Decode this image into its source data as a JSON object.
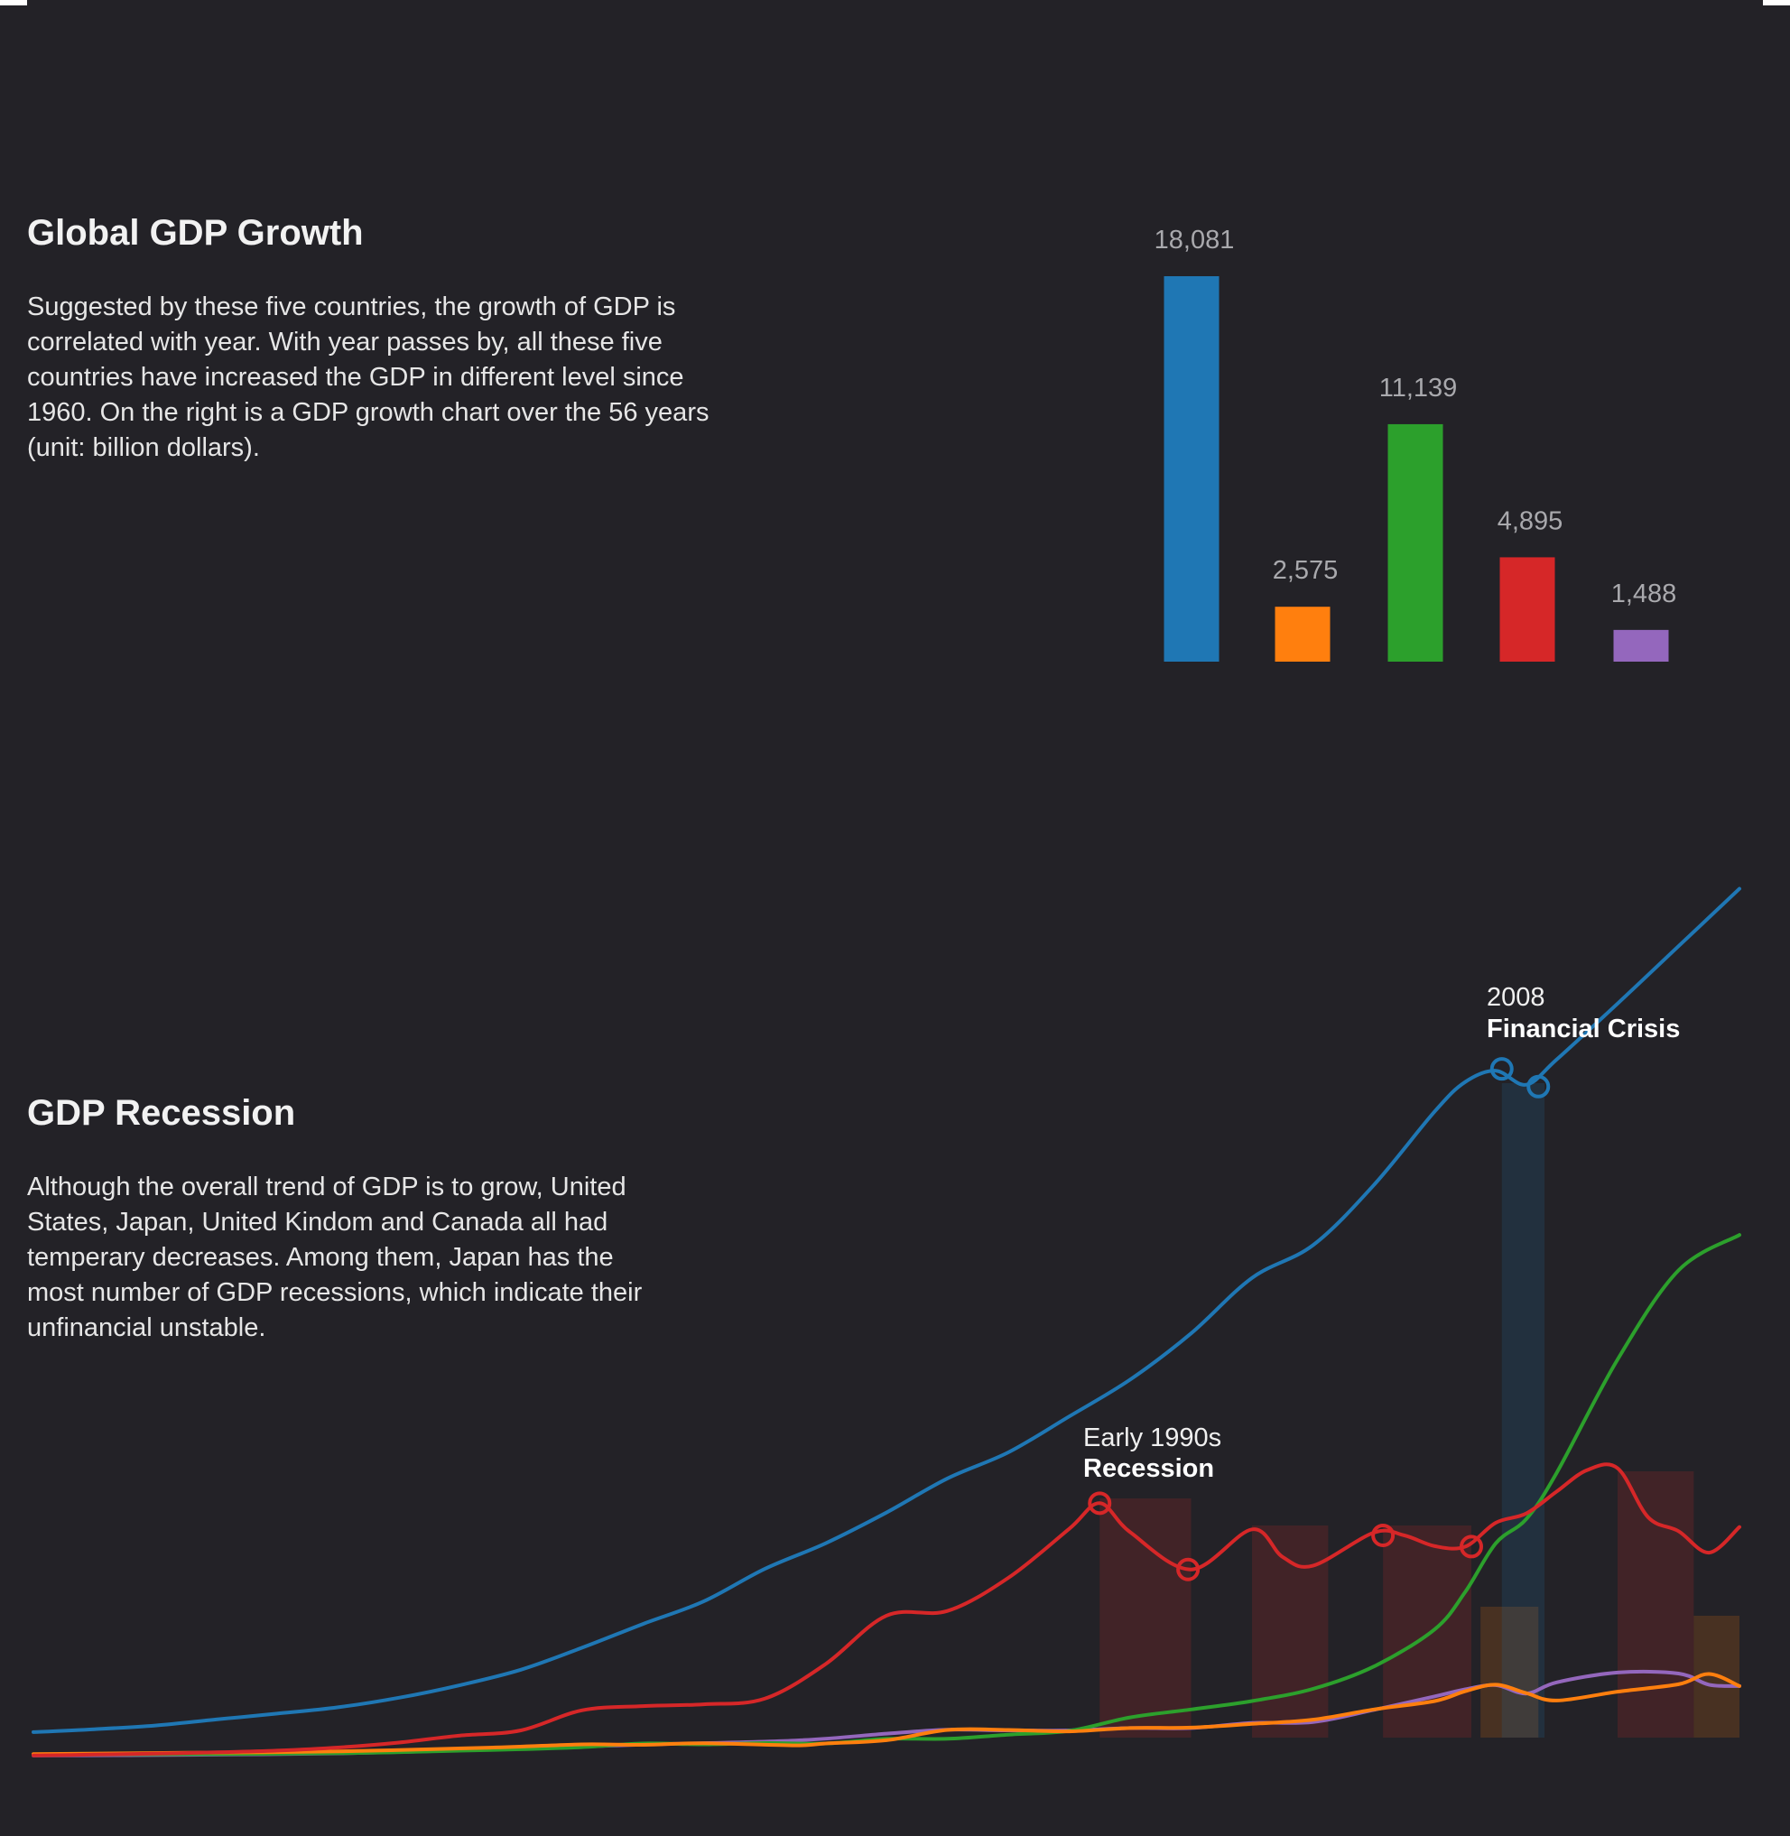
{
  "sections": {
    "growth": {
      "title": "Global GDP Growth",
      "body": "Suggested by these five countries, the growth of GDP is correlated with year. With year passes by, all these five countries have increased the GDP in different level since 1960. On the right is a GDP growth chart over the 56 years (unit: billion dollars)."
    },
    "recession": {
      "title": "GDP Recession",
      "body": "Although the overall trend of GDP is to grow, United States, Japan, United Kindom and Canada all had temperary decreases. Among them,  Japan has the most number of GDP recessions, which indicate their unfinancial unstable."
    }
  },
  "chart_data": [
    {
      "type": "bar",
      "title": "",
      "values": [
        18081,
        2575,
        11139,
        4895,
        1488
      ],
      "labels": [
        "18,081",
        "2,575",
        "11,139",
        "4,895",
        "1,488"
      ],
      "colors": [
        "#1f77b4",
        "#ff7f0e",
        "#2ca02c",
        "#d62728",
        "#9467bd"
      ],
      "ylim": [
        0,
        18081
      ]
    },
    {
      "type": "line",
      "title": "",
      "x_range": [
        1960,
        2016
      ],
      "ylim": [
        0,
        19000
      ],
      "series": [
        {
          "color": "#1f77b4",
          "points": [
            [
              1960,
              543
            ],
            [
              1962,
              605
            ],
            [
              1964,
              685
            ],
            [
              1966,
              815
            ],
            [
              1968,
              940
            ],
            [
              1970,
              1075
            ],
            [
              1972,
              1280
            ],
            [
              1974,
              1550
            ],
            [
              1976,
              1880
            ],
            [
              1978,
              2350
            ],
            [
              1980,
              2860
            ],
            [
              1982,
              3345
            ],
            [
              1984,
              4040
            ],
            [
              1986,
              4590
            ],
            [
              1988,
              5250
            ],
            [
              1990,
              5980
            ],
            [
              1992,
              6540
            ],
            [
              1994,
              7310
            ],
            [
              1996,
              8100
            ],
            [
              1998,
              9090
            ],
            [
              2000,
              10280
            ],
            [
              2002,
              10980
            ],
            [
              2004,
              12270
            ],
            [
              2006,
              13850
            ],
            [
              2007,
              14480
            ],
            [
              2008,
              14720
            ],
            [
              2009,
              14420
            ],
            [
              2010,
              14960
            ],
            [
              2012,
              16160
            ],
            [
              2014,
              17390
            ],
            [
              2016,
              18620
            ]
          ]
        },
        {
          "color": "#ff7f0e",
          "points": [
            [
              1960,
              72
            ],
            [
              1965,
              100
            ],
            [
              1970,
              130
            ],
            [
              1975,
              210
            ],
            [
              1978,
              280
            ],
            [
              1980,
              270
            ],
            [
              1982,
              305
            ],
            [
              1985,
              260
            ],
            [
              1986,
              300
            ],
            [
              1988,
              370
            ],
            [
              1990,
              590
            ],
            [
              1992,
              590
            ],
            [
              1994,
              560
            ],
            [
              1996,
              630
            ],
            [
              1998,
              640
            ],
            [
              2000,
              720
            ],
            [
              2002,
              810
            ],
            [
              2004,
              1030
            ],
            [
              2006,
              1210
            ],
            [
              2007,
              1420
            ],
            [
              2008,
              1560
            ],
            [
              2009,
              1380
            ],
            [
              2010,
              1220
            ],
            [
              2012,
              1410
            ],
            [
              2014,
              1570
            ],
            [
              2015,
              1790
            ],
            [
              2016,
              1530
            ]
          ]
        },
        {
          "color": "#2ca02c",
          "points": [
            [
              1960,
              60
            ],
            [
              1965,
              70
            ],
            [
              1970,
              90
            ],
            [
              1975,
              160
            ],
            [
              1978,
              220
            ],
            [
              1980,
              300
            ],
            [
              1982,
              280
            ],
            [
              1984,
              310
            ],
            [
              1986,
              300
            ],
            [
              1988,
              400
            ],
            [
              1990,
              400
            ],
            [
              1992,
              490
            ],
            [
              1994,
              570
            ],
            [
              1996,
              860
            ],
            [
              1998,
              1030
            ],
            [
              2000,
              1210
            ],
            [
              2002,
              1470
            ],
            [
              2004,
              1950
            ],
            [
              2006,
              2750
            ],
            [
              2007,
              3550
            ],
            [
              2008,
              4590
            ],
            [
              2009,
              5110
            ],
            [
              2010,
              6100
            ],
            [
              2012,
              8530
            ],
            [
              2014,
              10440
            ],
            [
              2016,
              11200
            ]
          ]
        },
        {
          "color": "#d62728",
          "points": [
            [
              1960,
              44
            ],
            [
              1962,
              61
            ],
            [
              1964,
              82
            ],
            [
              1966,
              110
            ],
            [
              1968,
              147
            ],
            [
              1970,
              213
            ],
            [
              1972,
              320
            ],
            [
              1974,
              470
            ],
            [
              1976,
              580
            ],
            [
              1978,
              1010
            ],
            [
              1980,
              1100
            ],
            [
              1982,
              1140
            ],
            [
              1984,
              1260
            ],
            [
              1986,
              2000
            ],
            [
              1988,
              3040
            ],
            [
              1990,
              3140
            ],
            [
              1992,
              3850
            ],
            [
              1994,
              4900
            ],
            [
              1995,
              5450
            ],
            [
              1996,
              4830
            ],
            [
              1998,
              4030
            ],
            [
              2000,
              4890
            ],
            [
              2001,
              4300
            ],
            [
              2002,
              4110
            ],
            [
              2004,
              4820
            ],
            [
              2005,
              4760
            ],
            [
              2006,
              4530
            ],
            [
              2007,
              4520
            ],
            [
              2008,
              5030
            ],
            [
              2009,
              5230
            ],
            [
              2010,
              5700
            ],
            [
              2011,
              6160
            ],
            [
              2012,
              6200
            ],
            [
              2013,
              5150
            ],
            [
              2014,
              4850
            ],
            [
              2015,
              4390
            ],
            [
              2016,
              4940
            ]
          ]
        },
        {
          "color": "#9467bd",
          "points": [
            [
              1960,
              40
            ],
            [
              1965,
              57
            ],
            [
              1970,
              88
            ],
            [
              1975,
              173
            ],
            [
              1980,
              274
            ],
            [
              1985,
              364
            ],
            [
              1988,
              510
            ],
            [
              1990,
              594
            ],
            [
              1992,
              580
            ],
            [
              1994,
              580
            ],
            [
              1996,
              630
            ],
            [
              1998,
              630
            ],
            [
              2000,
              740
            ],
            [
              2002,
              760
            ],
            [
              2004,
              1020
            ],
            [
              2006,
              1310
            ],
            [
              2007,
              1460
            ],
            [
              2008,
              1550
            ],
            [
              2009,
              1370
            ],
            [
              2010,
              1610
            ],
            [
              2012,
              1820
            ],
            [
              2014,
              1800
            ],
            [
              2015,
              1560
            ],
            [
              2016,
              1530
            ]
          ]
        }
      ],
      "shaded_periods": [
        {
          "start": 1995,
          "end": 1998,
          "color": "#d62728"
        },
        {
          "start": 2000,
          "end": 2002.5,
          "color": "#d62728"
        },
        {
          "start": 2004.3,
          "end": 2007.2,
          "color": "#d62728"
        },
        {
          "start": 2007.5,
          "end": 2009.4,
          "color": "#ff7f0e"
        },
        {
          "start": 2008.2,
          "end": 2009.6,
          "color": "#1f77b4"
        },
        {
          "start": 2012,
          "end": 2014.5,
          "color": "#d62728"
        },
        {
          "start": 2014.5,
          "end": 2016,
          "color": "#ff7f0e"
        }
      ],
      "markers": [
        {
          "x": 1995,
          "y": 5450,
          "color": "#d62728"
        },
        {
          "x": 1997.9,
          "y": 4030,
          "color": "#d62728"
        },
        {
          "x": 2004.3,
          "y": 4760,
          "color": "#d62728"
        },
        {
          "x": 2007.2,
          "y": 4520,
          "color": "#d62728"
        },
        {
          "x": 2008.2,
          "y": 14760,
          "color": "#1f77b4"
        },
        {
          "x": 2009.4,
          "y": 14380,
          "color": "#1f77b4"
        }
      ],
      "annotations": [
        {
          "year": "Early 1990s",
          "event": "Recession"
        },
        {
          "year": "2008",
          "event": "Financial Crisis"
        }
      ]
    }
  ]
}
